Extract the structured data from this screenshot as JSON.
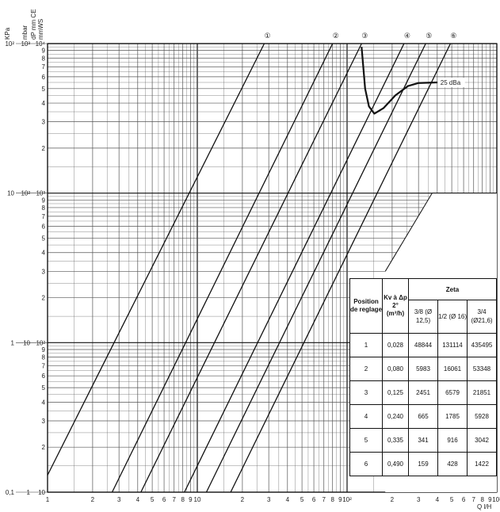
{
  "axis_units": {
    "left_kpa": "KPa",
    "left_mbar": "mbar",
    "left_mmce": "dP mm CE",
    "left_mmws": "mmWS",
    "bottom": "Q l/H"
  },
  "chart_data": {
    "type": "line",
    "xscale": "log",
    "yscale": "log",
    "xlim": [
      1,
      1000
    ],
    "ylim": [
      10,
      10000
    ],
    "xlabel": "Q l/H",
    "ylabel": "dP mm CE",
    "x_ticks": [
      {
        "v": 1,
        "l": "1"
      },
      {
        "v": 2,
        "l": "2"
      },
      {
        "v": 3,
        "l": "3"
      },
      {
        "v": 4,
        "l": "4"
      },
      {
        "v": 5,
        "l": "5"
      },
      {
        "v": 6,
        "l": "6"
      },
      {
        "v": 7,
        "l": "7"
      },
      {
        "v": 8,
        "l": "8"
      },
      {
        "v": 9,
        "l": "9"
      },
      {
        "v": 10,
        "l": "10"
      },
      {
        "v": 20,
        "l": "2"
      },
      {
        "v": 30,
        "l": "3"
      },
      {
        "v": 40,
        "l": "4"
      },
      {
        "v": 50,
        "l": "5"
      },
      {
        "v": 60,
        "l": "6"
      },
      {
        "v": 70,
        "l": "7"
      },
      {
        "v": 80,
        "l": "8"
      },
      {
        "v": 90,
        "l": "9"
      },
      {
        "v": 100,
        "l": "10²"
      },
      {
        "v": 200,
        "l": "2"
      },
      {
        "v": 300,
        "l": "3"
      },
      {
        "v": 400,
        "l": "4"
      },
      {
        "v": 500,
        "l": "5"
      },
      {
        "v": 600,
        "l": "6"
      },
      {
        "v": 700,
        "l": "7"
      },
      {
        "v": 800,
        "l": "8"
      },
      {
        "v": 900,
        "l": "9"
      },
      {
        "v": 1000,
        "l": "10³"
      }
    ],
    "y_ticks": [
      {
        "v": 10,
        "l": "10"
      },
      {
        "v": 20,
        "l": "2"
      },
      {
        "v": 30,
        "l": "3"
      },
      {
        "v": 40,
        "l": "4"
      },
      {
        "v": 50,
        "l": "5"
      },
      {
        "v": 60,
        "l": "6"
      },
      {
        "v": 70,
        "l": "7"
      },
      {
        "v": 80,
        "l": "8"
      },
      {
        "v": 90,
        "l": "9"
      },
      {
        "v": 100,
        "l": "10²"
      },
      {
        "v": 200,
        "l": "2"
      },
      {
        "v": 300,
        "l": "3"
      },
      {
        "v": 400,
        "l": "4"
      },
      {
        "v": 500,
        "l": "5"
      },
      {
        "v": 600,
        "l": "6"
      },
      {
        "v": 700,
        "l": "7"
      },
      {
        "v": 800,
        "l": "8"
      },
      {
        "v": 900,
        "l": "9"
      },
      {
        "v": 1000,
        "l": "10³"
      },
      {
        "v": 2000,
        "l": "2"
      },
      {
        "v": 3000,
        "l": "3"
      },
      {
        "v": 4000,
        "l": "4"
      },
      {
        "v": 5000,
        "l": "5"
      },
      {
        "v": 6000,
        "l": "6"
      },
      {
        "v": 7000,
        "l": "7"
      },
      {
        "v": 8000,
        "l": "8"
      },
      {
        "v": 9000,
        "l": "9"
      },
      {
        "v": 10000,
        "l": "10⁴"
      }
    ],
    "kpa_ticks": [
      {
        "v": 10,
        "l": "0,1"
      },
      {
        "v": 100,
        "l": "1"
      },
      {
        "v": 1000,
        "l": "10"
      },
      {
        "v": 10000,
        "l": "10²"
      }
    ],
    "mbar_ticks": [
      {
        "v": 10,
        "l": "1"
      },
      {
        "v": 100,
        "l": "10"
      },
      {
        "v": 1000,
        "l": "10²"
      },
      {
        "v": 10000,
        "l": "10³"
      }
    ],
    "series": [
      {
        "marker": "①",
        "points": [
          [
            1,
            13
          ],
          [
            28,
            10000
          ]
        ]
      },
      {
        "marker": "②",
        "points": [
          [
            2.7,
            10
          ],
          [
            80,
            10000
          ]
        ]
      },
      {
        "marker": "③",
        "points": [
          [
            4.2,
            10
          ],
          [
            125,
            10000
          ]
        ]
      },
      {
        "marker": "④",
        "points": [
          [
            8.2,
            10
          ],
          [
            240,
            10000
          ]
        ]
      },
      {
        "marker": "⑤",
        "points": [
          [
            11.5,
            10
          ],
          [
            335,
            10000
          ]
        ]
      },
      {
        "marker": "⑥",
        "points": [
          [
            16.7,
            10
          ],
          [
            490,
            10000
          ]
        ]
      }
    ],
    "noise_curve": {
      "label": "25 dBa",
      "points": [
        [
          125,
          9500
        ],
        [
          132,
          5000
        ],
        [
          140,
          3800
        ],
        [
          152,
          3400
        ],
        [
          175,
          3700
        ],
        [
          210,
          4500
        ],
        [
          255,
          5200
        ],
        [
          300,
          5450
        ],
        [
          400,
          5500
        ]
      ]
    },
    "table": {
      "headers": {
        "position": "Position de reglage",
        "kv": "Kv à Δp 2° (m³/h)",
        "zeta": "Zeta",
        "sizes": [
          "3/8 (Ø 12,5)",
          "1/2 (Ø 16)",
          "3/4 (Ø21,6)"
        ]
      },
      "rows": [
        [
          "1",
          "0,028",
          "48844",
          "131114",
          "435495"
        ],
        [
          "2",
          "0,080",
          "5983",
          "16061",
          "53348"
        ],
        [
          "3",
          "0,125",
          "2451",
          "6579",
          "21851"
        ],
        [
          "4",
          "0,240",
          "665",
          "1785",
          "5928"
        ],
        [
          "5",
          "0,335",
          "341",
          "916",
          "3042"
        ],
        [
          "6",
          "0,490",
          "159",
          "428",
          "1422"
        ]
      ]
    }
  }
}
